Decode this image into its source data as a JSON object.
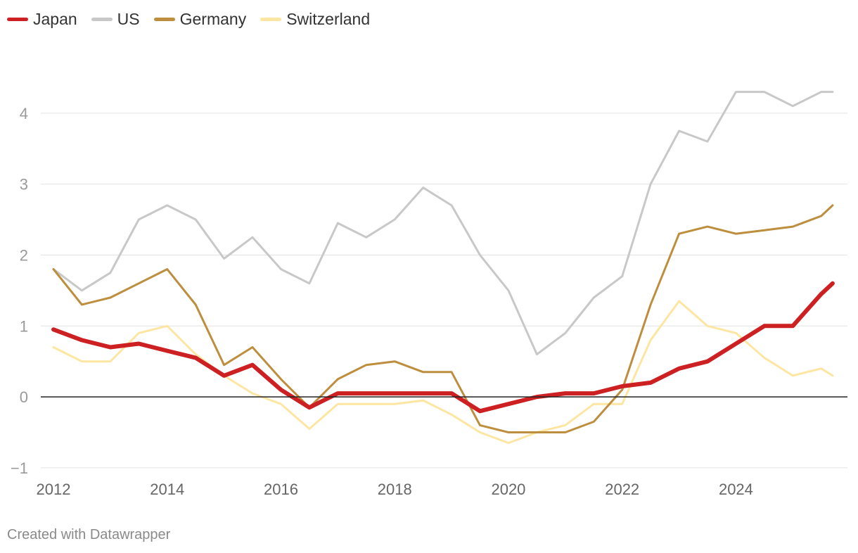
{
  "chart_data": {
    "type": "line",
    "title": "",
    "xlabel": "",
    "ylabel": "",
    "xlim": [
      2012.0,
      2025.8
    ],
    "ylim": [
      -1.1,
      5.0
    ],
    "y_ticks": [
      -1,
      0,
      1,
      2,
      3,
      4
    ],
    "y_tick_labels": [
      "−1",
      "0",
      "1",
      "2",
      "3",
      "4"
    ],
    "x_ticks": [
      2012,
      2014,
      2016,
      2018,
      2020,
      2022,
      2024
    ],
    "x_tick_labels": [
      "2012",
      "2014",
      "2016",
      "2018",
      "2020",
      "2022",
      "2024"
    ],
    "grid": "horizontal",
    "zero_line": true,
    "legend_position": "top-left",
    "x": [
      2012.0,
      2012.5,
      2013.0,
      2013.5,
      2014.0,
      2014.5,
      2015.0,
      2015.5,
      2016.0,
      2016.5,
      2017.0,
      2017.5,
      2018.0,
      2018.5,
      2019.0,
      2019.5,
      2020.0,
      2020.5,
      2021.0,
      2021.5,
      2022.0,
      2022.5,
      2023.0,
      2023.5,
      2024.0,
      2024.5,
      2025.0,
      2025.5,
      2025.7
    ],
    "series": [
      {
        "name": "US",
        "color": "#c8c8c8",
        "width": 3,
        "values": [
          1.8,
          1.5,
          1.75,
          2.5,
          2.7,
          2.5,
          1.95,
          2.25,
          1.8,
          1.6,
          2.45,
          2.25,
          2.5,
          2.95,
          2.7,
          2.0,
          1.5,
          0.6,
          0.9,
          1.4,
          1.7,
          3.0,
          3.75,
          3.6,
          4.3,
          4.3,
          4.1,
          4.3,
          4.3
        ]
      },
      {
        "name": "Switzerland",
        "color": "#fde5a2",
        "width": 3,
        "values": [
          0.7,
          0.5,
          0.5,
          0.9,
          1.0,
          0.6,
          0.3,
          0.05,
          -0.1,
          -0.45,
          -0.1,
          -0.1,
          -0.1,
          -0.05,
          -0.25,
          -0.5,
          -0.65,
          -0.5,
          -0.4,
          -0.1,
          -0.1,
          0.8,
          1.35,
          1.0,
          0.9,
          0.55,
          0.3,
          0.4,
          0.3
        ]
      },
      {
        "name": "Germany",
        "color": "#bd8e3e",
        "width": 3,
        "values": [
          1.8,
          1.3,
          1.4,
          1.6,
          1.8,
          1.3,
          0.45,
          0.7,
          0.25,
          -0.15,
          0.25,
          0.45,
          0.5,
          0.35,
          0.35,
          -0.4,
          -0.5,
          -0.5,
          -0.5,
          -0.35,
          0.1,
          1.3,
          2.3,
          2.4,
          2.3,
          2.35,
          2.4,
          2.55,
          2.7
        ]
      },
      {
        "name": "Japan",
        "color": "#cc2023",
        "width": 6,
        "values": [
          0.95,
          0.8,
          0.7,
          0.75,
          0.65,
          0.55,
          0.3,
          0.45,
          0.1,
          -0.15,
          0.05,
          0.05,
          0.05,
          0.05,
          0.05,
          -0.2,
          -0.1,
          0.0,
          0.05,
          0.05,
          0.15,
          0.2,
          0.4,
          0.5,
          0.75,
          1.0,
          1.0,
          1.45,
          1.6
        ]
      }
    ]
  },
  "legend": [
    {
      "label": "Japan",
      "color": "#cc2023"
    },
    {
      "label": "US",
      "color": "#c8c8c8"
    },
    {
      "label": "Germany",
      "color": "#bd8e3e"
    },
    {
      "label": "Switzerland",
      "color": "#fde5a2"
    }
  ],
  "footer": {
    "credit": "Created with Datawrapper"
  }
}
